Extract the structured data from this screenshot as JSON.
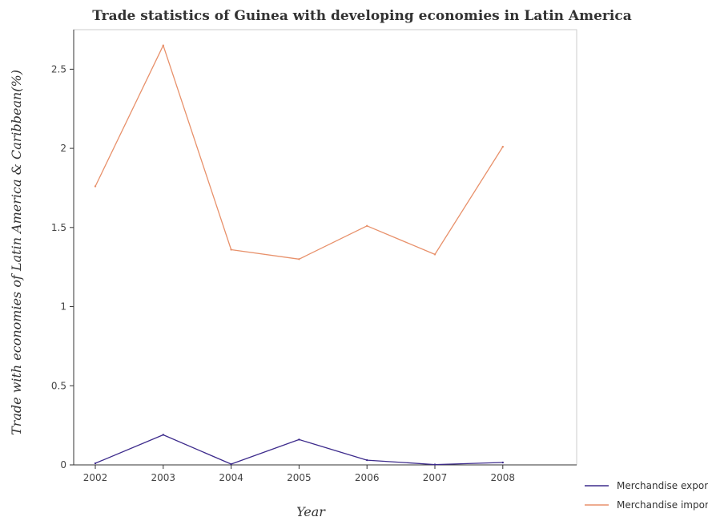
{
  "chart_data": {
    "type": "line",
    "title": "Trade statistics of Guinea with developing economies in Latin America",
    "xlabel": "Year",
    "ylabel": "Trade with economies of Latin America & Caribbean(%)",
    "categories": [
      "2002",
      "2003",
      "2004",
      "2005",
      "2006",
      "2007",
      "2008"
    ],
    "ylim": [
      0,
      2.75
    ],
    "yticks": [
      0,
      0.5,
      1,
      1.5,
      2,
      2.5
    ],
    "ytick_labels": [
      "0",
      "0.5",
      "1",
      "1.5",
      "2",
      "2.5"
    ],
    "grid": false,
    "legend_position": "bottom-right",
    "series": [
      {
        "name": "Merchandise exports",
        "color": "#3d2b8c",
        "values": [
          0.01,
          0.19,
          0.005,
          0.16,
          0.03,
          0.002,
          0.015
        ]
      },
      {
        "name": "Merchandise imports",
        "color": "#e8916b",
        "values": [
          1.76,
          2.65,
          1.36,
          1.3,
          1.51,
          1.33,
          2.01
        ]
      }
    ]
  }
}
